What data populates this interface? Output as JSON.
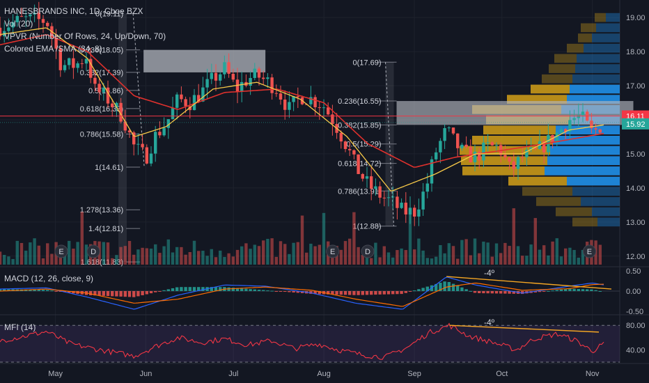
{
  "header": {
    "symbol": "HANESBRANDS INC, 1D, Cboe BZX",
    "vol": "Vol (20)",
    "vpvr": "VPVR (Number Of Rows, 24, Up/Down, 70)",
    "ema": "Colored EMA /SMA (34, 8)"
  },
  "colors": {
    "background": "#131722",
    "up": "#26a69a",
    "down": "#ef5350",
    "ema": "#f7c948",
    "sma": "#e0312d",
    "current_price_line": "#f23645",
    "fib_label": "#d1d4dc",
    "macd_line": "#2962ff",
    "signal_line": "#ff6d00",
    "mfi": "#f23645",
    "trendline": "#f5a623",
    "vpvr_up": "#2196f3",
    "vpvr_down": "#d4a017"
  },
  "price_axis": {
    "ticks": [
      "19.00",
      "18.00",
      "17.00",
      "16.00",
      "15.00",
      "14.00",
      "13.00",
      "12.00"
    ],
    "current_price": "16.11",
    "last_close": "15.92"
  },
  "macd_panel": {
    "label": "MACD (12, 26, close, 9)",
    "ticks": [
      "0.50",
      "0.00",
      "-0.50"
    ],
    "annotation": "-4º"
  },
  "mfi_panel": {
    "label": "MFI (14)",
    "ticks": [
      "80.00",
      "40.00"
    ],
    "annotation": "-4º"
  },
  "time_axis": {
    "labels": [
      "May",
      "Jun",
      "Jul",
      "Aug",
      "Sep",
      "Oct",
      "Nov"
    ]
  },
  "fib_levels": {
    "first": [
      "0(19.11)",
      "0.236(18.05)",
      "0.382(17.39)",
      "0.5(16.86)",
      "0.618(16.33)",
      "0.786(15.58)",
      "1(14.61)",
      "1.278(13.36)",
      "1.4(12.81)",
      "1.618(11.83)"
    ],
    "second": [
      "0(17.69)",
      "0.236(16.55)",
      "0.382(15.85)",
      "0.5(15.29)",
      "0.618(14.72)",
      "0.786(13.91)",
      "1(12.88)"
    ]
  },
  "events": {
    "markers": [
      "E",
      "D",
      "E",
      "D",
      "E"
    ]
  },
  "chart_data": {
    "type": "candlestick",
    "title": "HANESBRANDS INC, 1D, Cboe BZX",
    "ylim": [
      11.75,
      19.35
    ],
    "x_range": [
      "Apr 12",
      "Nov 8"
    ],
    "grid": true,
    "price_keypoints": [
      [
        "04-12",
        18.7
      ],
      [
        "04-20",
        18.95
      ],
      [
        "04-28",
        18.9
      ],
      [
        "05-03",
        17.6
      ],
      [
        "05-08",
        17.6
      ],
      [
        "05-12",
        17.9
      ],
      [
        "05-14",
        16.9
      ],
      [
        "05-18",
        16.7
      ],
      [
        "05-24",
        16.1
      ],
      [
        "05-28",
        15.2
      ],
      [
        "06-01",
        14.9
      ],
      [
        "06-04",
        15.5
      ],
      [
        "06-08",
        15.9
      ],
      [
        "06-12",
        16.6
      ],
      [
        "06-16",
        16.5
      ],
      [
        "06-20",
        16.8
      ],
      [
        "06-24",
        17.2
      ],
      [
        "06-28",
        17.5
      ],
      [
        "07-02",
        16.9
      ],
      [
        "07-06",
        17.2
      ],
      [
        "07-09",
        17.3
      ],
      [
        "07-13",
        17.1
      ],
      [
        "07-16",
        16.9
      ],
      [
        "07-20",
        16.3
      ],
      [
        "07-24",
        16.7
      ],
      [
        "07-28",
        16.6
      ],
      [
        "08-01",
        16.4
      ],
      [
        "08-04",
        16.0
      ],
      [
        "08-06",
        15.7
      ],
      [
        "08-09",
        15.2
      ],
      [
        "08-12",
        14.6
      ],
      [
        "08-16",
        14.1
      ],
      [
        "08-20",
        13.8
      ],
      [
        "08-24",
        13.6
      ],
      [
        "08-28",
        13.3
      ],
      [
        "09-01",
        13.3
      ],
      [
        "09-05",
        14.0
      ],
      [
        "09-08",
        15.0
      ],
      [
        "09-12",
        15.7
      ],
      [
        "09-15",
        15.3
      ],
      [
        "09-18",
        15.0
      ],
      [
        "09-22",
        14.9
      ],
      [
        "09-26",
        15.2
      ],
      [
        "09-30",
        15.2
      ],
      [
        "10-04",
        14.5
      ],
      [
        "10-08",
        14.9
      ],
      [
        "10-12",
        15.0
      ],
      [
        "10-16",
        15.3
      ],
      [
        "10-20",
        15.6
      ],
      [
        "10-24",
        16.0
      ],
      [
        "10-28",
        16.1
      ],
      [
        "11-01",
        15.6
      ],
      [
        "11-05",
        15.92
      ]
    ],
    "ema_keypoints": [
      [
        "04-12",
        18.5
      ],
      [
        "04-28",
        18.7
      ],
      [
        "05-12",
        17.8
      ],
      [
        "05-28",
        15.5
      ],
      [
        "06-08",
        15.8
      ],
      [
        "06-24",
        16.9
      ],
      [
        "07-09",
        17.1
      ],
      [
        "07-24",
        16.6
      ],
      [
        "08-09",
        15.5
      ],
      [
        "08-24",
        13.9
      ],
      [
        "09-08",
        14.4
      ],
      [
        "09-22",
        15.0
      ],
      [
        "10-08",
        15.0
      ],
      [
        "10-24",
        15.7
      ],
      [
        "11-05",
        15.85
      ]
    ],
    "sma_keypoints": [
      [
        "04-12",
        18.2
      ],
      [
        "04-28",
        18.5
      ],
      [
        "05-12",
        18.0
      ],
      [
        "05-28",
        16.7
      ],
      [
        "06-12",
        16.3
      ],
      [
        "06-28",
        16.8
      ],
      [
        "07-16",
        16.9
      ],
      [
        "08-01",
        16.5
      ],
      [
        "08-16",
        15.3
      ],
      [
        "09-01",
        14.6
      ],
      [
        "09-15",
        14.9
      ],
      [
        "10-01",
        15.1
      ],
      [
        "10-16",
        15.3
      ],
      [
        "11-05",
        15.6
      ]
    ],
    "current_price": 16.11,
    "last_close": 15.92,
    "fib_lines_1": [
      19.11,
      18.05,
      17.39,
      16.86,
      16.33,
      15.58,
      14.61,
      13.36,
      12.81,
      11.83
    ],
    "fib_lines_2": [
      17.69,
      16.55,
      15.85,
      15.29,
      14.72,
      13.91,
      12.88
    ],
    "vpvr_rows": [
      {
        "price": 19.0,
        "up": 1.0,
        "down": 0.8
      },
      {
        "price": 18.7,
        "up": 1.7,
        "down": 1.1
      },
      {
        "price": 18.4,
        "up": 2.0,
        "down": 1.0
      },
      {
        "price": 18.1,
        "up": 2.6,
        "down": 1.2
      },
      {
        "price": 17.8,
        "up": 3.1,
        "down": 1.6
      },
      {
        "price": 17.5,
        "up": 3.2,
        "down": 1.9
      },
      {
        "price": 17.2,
        "up": 3.4,
        "down": 2.2
      },
      {
        "price": 16.9,
        "up": 3.6,
        "down": 2.8
      },
      {
        "price": 16.6,
        "up": 3.8,
        "down": 4.3
      },
      {
        "price": 16.3,
        "up": 4.2,
        "down": 6.4
      },
      {
        "price": 16.0,
        "up": 3.6,
        "down": 6.0
      },
      {
        "price": 15.7,
        "up": 4.6,
        "down": 5.2
      },
      {
        "price": 15.4,
        "up": 4.8,
        "down": 5.8
      },
      {
        "price": 15.1,
        "up": 5.0,
        "down": 6.5
      },
      {
        "price": 14.8,
        "up": 5.2,
        "down": 6.2
      },
      {
        "price": 14.5,
        "up": 5.4,
        "down": 5.9
      },
      {
        "price": 14.2,
        "up": 3.8,
        "down": 4.2
      },
      {
        "price": 13.9,
        "up": 3.4,
        "down": 3.6
      },
      {
        "price": 13.6,
        "up": 2.8,
        "down": 3.2
      },
      {
        "price": 13.3,
        "up": 2.0,
        "down": 2.6
      },
      {
        "price": 13.0,
        "up": 1.6,
        "down": 1.8
      }
    ],
    "macd_range": [
      -0.55,
      0.55
    ],
    "macd_keypoints": [
      [
        "04-12",
        0.05
      ],
      [
        "04-28",
        0.08
      ],
      [
        "05-12",
        -0.15
      ],
      [
        "05-28",
        -0.45
      ],
      [
        "06-12",
        -0.1
      ],
      [
        "06-28",
        0.15
      ],
      [
        "07-12",
        0.12
      ],
      [
        "07-28",
        -0.05
      ],
      [
        "08-12",
        -0.3
      ],
      [
        "08-28",
        -0.45
      ],
      [
        "09-12",
        0.35
      ],
      [
        "09-22",
        0.15
      ],
      [
        "10-08",
        -0.05
      ],
      [
        "10-24",
        0.12
      ],
      [
        "11-01",
        0.2
      ],
      [
        "11-05",
        0.15
      ]
    ],
    "signal_keypoints": [
      [
        "04-12",
        0.0
      ],
      [
        "04-28",
        0.05
      ],
      [
        "05-12",
        -0.05
      ],
      [
        "05-28",
        -0.3
      ],
      [
        "06-12",
        -0.2
      ],
      [
        "06-28",
        0.05
      ],
      [
        "07-12",
        0.1
      ],
      [
        "07-28",
        0.02
      ],
      [
        "08-12",
        -0.2
      ],
      [
        "08-28",
        -0.38
      ],
      [
        "09-12",
        0.1
      ],
      [
        "09-22",
        0.2
      ],
      [
        "10-08",
        0.02
      ],
      [
        "10-24",
        0.06
      ],
      [
        "11-01",
        0.16
      ],
      [
        "11-05",
        0.17
      ]
    ],
    "mfi_range": [
      20,
      95
    ],
    "mfi_keypoints": [
      [
        "04-12",
        55
      ],
      [
        "04-20",
        62
      ],
      [
        "04-28",
        70
      ],
      [
        "05-06",
        50
      ],
      [
        "05-14",
        42
      ],
      [
        "05-22",
        35
      ],
      [
        "05-28",
        30
      ],
      [
        "06-04",
        45
      ],
      [
        "06-12",
        60
      ],
      [
        "06-20",
        52
      ],
      [
        "06-28",
        58
      ],
      [
        "07-06",
        48
      ],
      [
        "07-14",
        55
      ],
      [
        "07-22",
        42
      ],
      [
        "07-30",
        50
      ],
      [
        "08-06",
        40
      ],
      [
        "08-14",
        32
      ],
      [
        "08-22",
        28
      ],
      [
        "08-30",
        45
      ],
      [
        "09-06",
        68
      ],
      [
        "09-13",
        80
      ],
      [
        "09-20",
        62
      ],
      [
        "09-28",
        52
      ],
      [
        "10-06",
        40
      ],
      [
        "10-12",
        58
      ],
      [
        "10-20",
        66
      ],
      [
        "10-26",
        56
      ],
      [
        "11-01",
        38
      ],
      [
        "11-05",
        50
      ]
    ]
  }
}
